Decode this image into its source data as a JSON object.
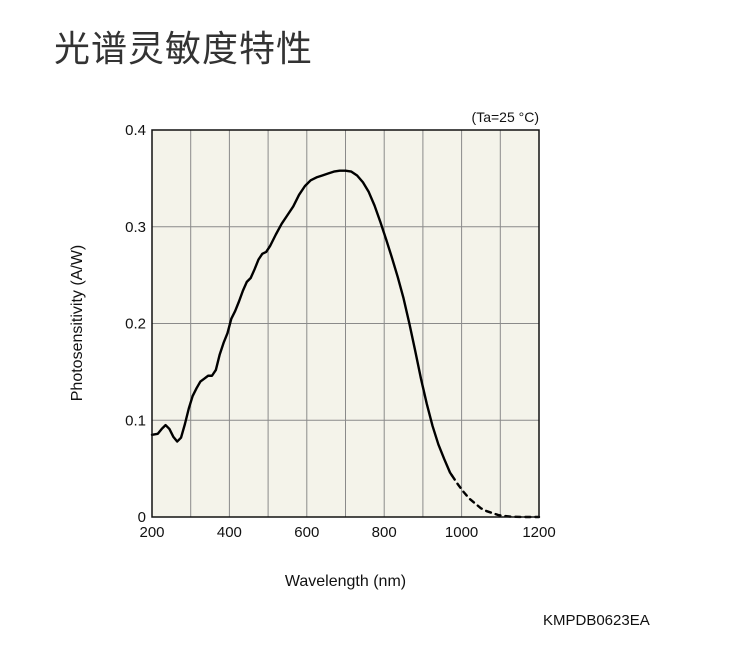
{
  "page": {
    "title": "光谱灵敏度特性",
    "code": "KMPDB0623EA"
  },
  "chart_data": {
    "type": "line",
    "title": "光谱灵敏度特性",
    "condition": "(Ta=25 °C)",
    "xlabel": "Wavelength (nm)",
    "ylabel": "Photosensitivity (A/W)",
    "xlim": [
      200,
      1200
    ],
    "ylim": [
      0,
      0.4
    ],
    "xticks": [
      200,
      400,
      600,
      800,
      1000,
      1200
    ],
    "xtick_labels": [
      "200",
      "400",
      "600",
      "800",
      "1000",
      "1200"
    ],
    "yticks": [
      0,
      0.1,
      0.2,
      0.3,
      0.4
    ],
    "ytick_labels": [
      "0",
      "0.1",
      "0.2",
      "0.3",
      "0.4"
    ],
    "x_grid_step": 100,
    "grid": true,
    "plot_background": "#f4f3ea",
    "grid_color": "#8a8a8a",
    "series": [
      {
        "style": "solid",
        "color": "#000000",
        "points": [
          [
            200,
            0.085
          ],
          [
            215,
            0.086
          ],
          [
            225,
            0.091
          ],
          [
            235,
            0.095
          ],
          [
            245,
            0.091
          ],
          [
            255,
            0.083
          ],
          [
            265,
            0.078
          ],
          [
            275,
            0.082
          ],
          [
            285,
            0.096
          ],
          [
            295,
            0.112
          ],
          [
            305,
            0.125
          ],
          [
            315,
            0.133
          ],
          [
            325,
            0.14
          ],
          [
            335,
            0.143
          ],
          [
            345,
            0.146
          ],
          [
            355,
            0.146
          ],
          [
            365,
            0.152
          ],
          [
            375,
            0.168
          ],
          [
            385,
            0.18
          ],
          [
            395,
            0.19
          ],
          [
            405,
            0.205
          ],
          [
            415,
            0.213
          ],
          [
            425,
            0.223
          ],
          [
            435,
            0.234
          ],
          [
            445,
            0.243
          ],
          [
            455,
            0.247
          ],
          [
            465,
            0.256
          ],
          [
            475,
            0.266
          ],
          [
            485,
            0.272
          ],
          [
            495,
            0.274
          ],
          [
            505,
            0.28
          ],
          [
            520,
            0.292
          ],
          [
            535,
            0.303
          ],
          [
            550,
            0.312
          ],
          [
            565,
            0.321
          ],
          [
            580,
            0.333
          ],
          [
            595,
            0.342
          ],
          [
            610,
            0.348
          ],
          [
            625,
            0.351
          ],
          [
            640,
            0.353
          ],
          [
            655,
            0.355
          ],
          [
            670,
            0.357
          ],
          [
            685,
            0.358
          ],
          [
            700,
            0.358
          ],
          [
            715,
            0.357
          ],
          [
            730,
            0.353
          ],
          [
            745,
            0.346
          ],
          [
            760,
            0.336
          ],
          [
            775,
            0.322
          ],
          [
            790,
            0.305
          ],
          [
            805,
            0.287
          ],
          [
            820,
            0.268
          ],
          [
            835,
            0.248
          ],
          [
            850,
            0.226
          ],
          [
            865,
            0.2
          ],
          [
            880,
            0.172
          ],
          [
            895,
            0.143
          ],
          [
            910,
            0.117
          ],
          [
            925,
            0.094
          ],
          [
            940,
            0.075
          ],
          [
            955,
            0.06
          ],
          [
            970,
            0.046
          ],
          [
            975,
            0.043
          ]
        ]
      },
      {
        "style": "dashed",
        "color": "#000000",
        "points": [
          [
            975,
            0.043
          ],
          [
            990,
            0.034
          ],
          [
            1005,
            0.026
          ],
          [
            1020,
            0.019
          ],
          [
            1035,
            0.014
          ],
          [
            1050,
            0.009
          ],
          [
            1065,
            0.006
          ],
          [
            1080,
            0.004
          ],
          [
            1095,
            0.002
          ],
          [
            1110,
            0.001
          ],
          [
            1125,
            0.0005
          ],
          [
            1140,
            0.0002
          ],
          [
            1155,
            0.0
          ],
          [
            1200,
            0.0
          ]
        ]
      }
    ]
  }
}
